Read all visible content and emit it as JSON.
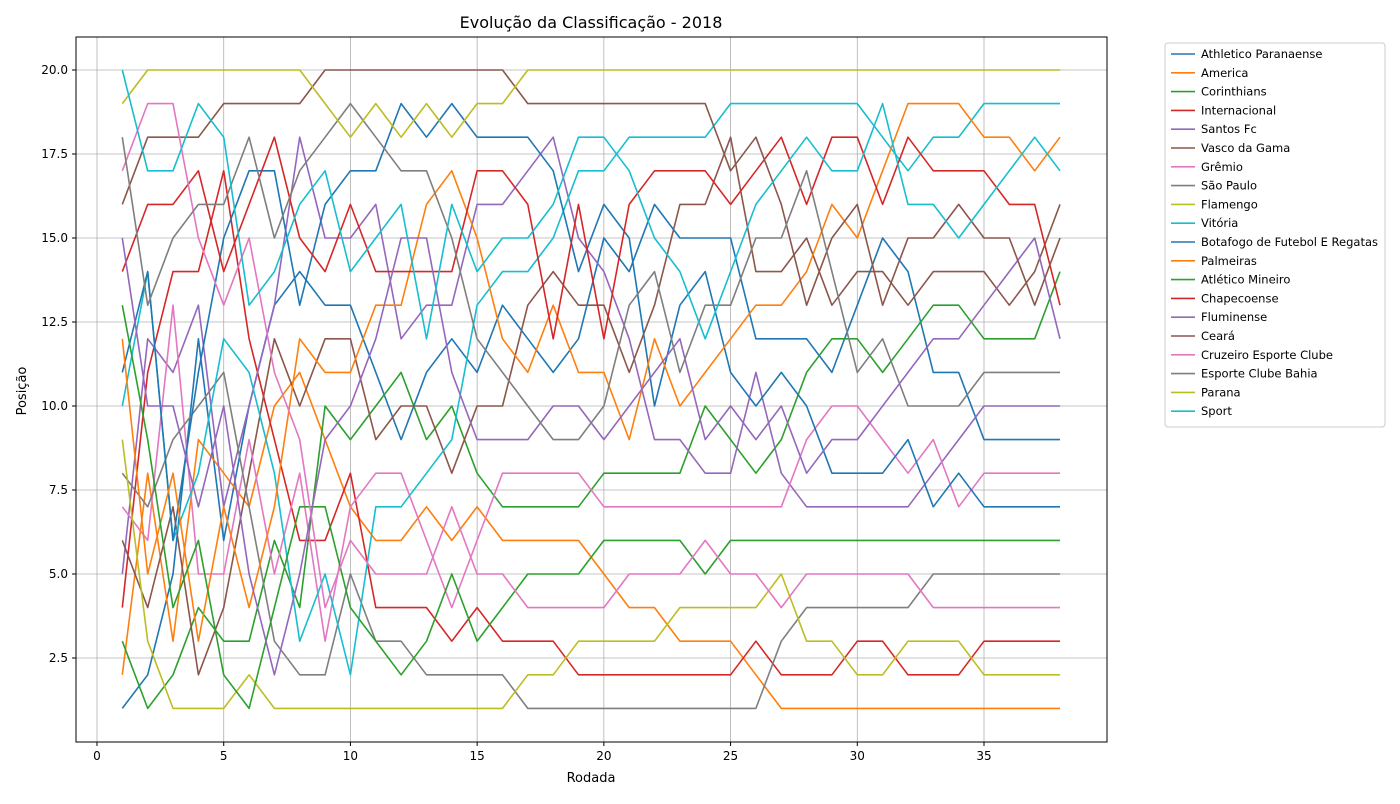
{
  "chart_data": {
    "type": "line",
    "title": "Evolução da Classificação - 2018",
    "xlabel": "Rodada",
    "ylabel": "Posição",
    "xlim": [
      0,
      40
    ],
    "ylim": [
      0,
      21
    ],
    "xticks": [
      0,
      5,
      10,
      15,
      20,
      25,
      30,
      35
    ],
    "yticks": [
      2.5,
      5.0,
      7.5,
      10.0,
      12.5,
      15.0,
      17.5,
      20.0
    ],
    "grid": true,
    "legend_position": "outside-right-top",
    "x": [
      1,
      2,
      3,
      4,
      5,
      6,
      7,
      8,
      9,
      10,
      11,
      12,
      13,
      14,
      15,
      16,
      17,
      18,
      19,
      20,
      21,
      22,
      23,
      24,
      25,
      26,
      27,
      28,
      29,
      30,
      31,
      32,
      33,
      34,
      35,
      36,
      37,
      38
    ],
    "series": [
      {
        "name": "Athletico Paranaense",
        "color": "#1f77b4",
        "values": [
          1,
          2,
          5,
          12,
          6,
          10,
          13,
          14,
          13,
          13,
          11,
          9,
          11,
          12,
          11,
          13,
          12,
          11,
          12,
          15,
          14,
          16,
          15,
          15,
          15,
          12,
          12,
          12,
          11,
          13,
          15,
          14,
          11,
          11,
          9,
          9,
          9,
          9
        ]
      },
      {
        "name": "America",
        "color": "#ff7f0e",
        "values": [
          2,
          8,
          3,
          9,
          8,
          7,
          10,
          11,
          9,
          7,
          6,
          6,
          7,
          6,
          7,
          6,
          6,
          6,
          6,
          5,
          4,
          4,
          3,
          3,
          3,
          2,
          1,
          1,
          1,
          1,
          1,
          1,
          1,
          1,
          1,
          1,
          1,
          1
        ]
      },
      {
        "name": "Corinthians",
        "color": "#2ca02c",
        "values": [
          3,
          1,
          2,
          4,
          3,
          3,
          6,
          4,
          10,
          9,
          10,
          11,
          9,
          10,
          8,
          7,
          7,
          7,
          7,
          8,
          8,
          8,
          8,
          10,
          9,
          8,
          9,
          11,
          12,
          12,
          11,
          12,
          13,
          13,
          12,
          12,
          12,
          14
        ]
      },
      {
        "name": "Internacional",
        "color": "#d62728",
        "values": [
          4,
          11,
          14,
          14,
          17,
          12,
          9,
          6,
          6,
          8,
          4,
          4,
          4,
          3,
          4,
          3,
          3,
          3,
          2,
          2,
          2,
          2,
          2,
          2,
          2,
          3,
          2,
          2,
          2,
          3,
          3,
          2,
          2,
          2,
          3,
          3,
          3,
          3
        ]
      },
      {
        "name": "Santos Fc",
        "color": "#9467bd",
        "values": [
          5,
          12,
          11,
          13,
          7,
          10,
          13,
          18,
          15,
          15,
          16,
          12,
          13,
          13,
          16,
          16,
          17,
          18,
          15,
          14,
          12,
          9,
          9,
          8,
          8,
          11,
          8,
          7,
          7,
          7,
          7,
          7,
          8,
          9,
          10,
          10,
          10,
          10
        ]
      },
      {
        "name": "Vasco da Gama",
        "color": "#8c564b",
        "values": [
          6,
          4,
          7,
          2,
          4,
          8,
          12,
          10,
          12,
          12,
          9,
          10,
          10,
          8,
          10,
          10,
          13,
          14,
          13,
          13,
          11,
          13,
          16,
          16,
          18,
          14,
          14,
          15,
          13,
          14,
          14,
          13,
          14,
          14,
          14,
          13,
          14,
          16
        ]
      },
      {
        "name": "Grêmio",
        "color": "#e377c2",
        "values": [
          7,
          6,
          13,
          5,
          5,
          9,
          5,
          8,
          3,
          7,
          8,
          8,
          6,
          4,
          6,
          8,
          8,
          8,
          8,
          7,
          7,
          7,
          7,
          7,
          7,
          7,
          7,
          9,
          10,
          10,
          9,
          8,
          9,
          7,
          8,
          8,
          8,
          8
        ]
      },
      {
        "name": "São Paulo",
        "color": "#7f7f7f",
        "values": [
          8,
          7,
          9,
          10,
          11,
          7,
          3,
          2,
          2,
          5,
          3,
          3,
          2,
          2,
          2,
          2,
          1,
          1,
          1,
          1,
          1,
          1,
          1,
          1,
          1,
          1,
          3,
          4,
          4,
          4,
          4,
          4,
          5,
          5,
          5,
          5,
          5,
          5
        ]
      },
      {
        "name": "Flamengo",
        "color": "#bcbd22",
        "values": [
          9,
          3,
          1,
          1,
          1,
          2,
          1,
          1,
          1,
          1,
          1,
          1,
          1,
          1,
          1,
          1,
          2,
          2,
          3,
          3,
          3,
          3,
          4,
          4,
          4,
          4,
          5,
          3,
          3,
          2,
          2,
          3,
          3,
          3,
          2,
          2,
          2,
          2
        ]
      },
      {
        "name": "Vitória",
        "color": "#17becf",
        "values": [
          10,
          14,
          6,
          8,
          12,
          11,
          8,
          3,
          5,
          2,
          7,
          7,
          8,
          9,
          13,
          14,
          14,
          15,
          17,
          17,
          18,
          18,
          18,
          18,
          19,
          19,
          19,
          19,
          19,
          19,
          18,
          17,
          18,
          18,
          19,
          19,
          19,
          19
        ]
      },
      {
        "name": "Botafogo de Futebol E Regatas",
        "color": "#1f77b4",
        "values": [
          11,
          14,
          6,
          11,
          15,
          17,
          17,
          13,
          16,
          17,
          17,
          19,
          18,
          19,
          18,
          18,
          18,
          17,
          14,
          16,
          15,
          10,
          13,
          14,
          11,
          10,
          11,
          10,
          8,
          8,
          8,
          9,
          7,
          8,
          7,
          7,
          7,
          7
        ]
      },
      {
        "name": "Palmeiras",
        "color": "#ff7f0e",
        "values": [
          12,
          5,
          8,
          3,
          7,
          4,
          7,
          12,
          11,
          11,
          13,
          13,
          16,
          17,
          15,
          12,
          11,
          13,
          11,
          11,
          9,
          12,
          10,
          11,
          12,
          13,
          13,
          14,
          16,
          15,
          17,
          19,
          19,
          19,
          18,
          18,
          17,
          18
        ]
      },
      {
        "name": "Atlético Mineiro",
        "color": "#2ca02c",
        "values": [
          13,
          9,
          4,
          6,
          2,
          1,
          4,
          7,
          7,
          4,
          3,
          2,
          3,
          5,
          3,
          4,
          5,
          5,
          5,
          6,
          6,
          6,
          6,
          5,
          6,
          6,
          6,
          6,
          6,
          6,
          6,
          6,
          6,
          6,
          6,
          6,
          6,
          6
        ]
      },
      {
        "name": "Chapecoense",
        "color": "#d62728",
        "values": [
          14,
          16,
          16,
          17,
          14,
          16,
          18,
          15,
          14,
          16,
          14,
          14,
          14,
          14,
          17,
          17,
          16,
          12,
          16,
          12,
          16,
          17,
          17,
          17,
          16,
          17,
          18,
          16,
          18,
          18,
          16,
          18,
          17,
          17,
          17,
          16,
          16,
          13
        ]
      },
      {
        "name": "Fluminense",
        "color": "#9467bd",
        "values": [
          15,
          10,
          10,
          7,
          10,
          5,
          2,
          5,
          9,
          10,
          12,
          15,
          15,
          11,
          9,
          9,
          9,
          10,
          10,
          9,
          10,
          11,
          12,
          9,
          10,
          9,
          10,
          8,
          9,
          9,
          10,
          11,
          12,
          12,
          13,
          14,
          15,
          12
        ]
      },
      {
        "name": "Ceará",
        "color": "#8c564b",
        "values": [
          16,
          18,
          18,
          18,
          19,
          19,
          19,
          19,
          20,
          20,
          20,
          20,
          20,
          20,
          20,
          20,
          19,
          19,
          19,
          19,
          19,
          19,
          19,
          19,
          17,
          18,
          16,
          13,
          15,
          16,
          13,
          15,
          15,
          16,
          15,
          15,
          13,
          15
        ]
      },
      {
        "name": "Cruzeiro Esporte Clube",
        "color": "#e377c2",
        "values": [
          17,
          19,
          19,
          15,
          13,
          15,
          11,
          9,
          4,
          6,
          5,
          5,
          5,
          7,
          5,
          5,
          4,
          4,
          4,
          4,
          5,
          5,
          5,
          6,
          5,
          5,
          4,
          5,
          5,
          5,
          5,
          5,
          4,
          4,
          4,
          4,
          4,
          4
        ]
      },
      {
        "name": "Esporte Clube Bahia",
        "color": "#7f7f7f",
        "values": [
          18,
          13,
          15,
          16,
          16,
          18,
          15,
          17,
          18,
          19,
          18,
          17,
          17,
          15,
          12,
          11,
          10,
          9,
          9,
          10,
          13,
          14,
          11,
          13,
          13,
          15,
          15,
          17,
          14,
          11,
          12,
          10,
          10,
          10,
          11,
          11,
          11,
          11
        ]
      },
      {
        "name": "Parana",
        "color": "#bcbd22",
        "values": [
          19,
          20,
          20,
          20,
          20,
          20,
          20,
          20,
          19,
          18,
          19,
          18,
          19,
          18,
          19,
          19,
          20,
          20,
          20,
          20,
          20,
          20,
          20,
          20,
          20,
          20,
          20,
          20,
          20,
          20,
          20,
          20,
          20,
          20,
          20,
          20,
          20,
          20
        ]
      },
      {
        "name": "Sport",
        "color": "#17becf",
        "values": [
          20,
          17,
          17,
          19,
          18,
          13,
          14,
          16,
          17,
          14,
          15,
          16,
          12,
          16,
          14,
          15,
          15,
          16,
          18,
          18,
          17,
          15,
          14,
          12,
          14,
          16,
          17,
          18,
          17,
          17,
          19,
          16,
          16,
          15,
          16,
          17,
          18,
          17
        ]
      }
    ]
  }
}
